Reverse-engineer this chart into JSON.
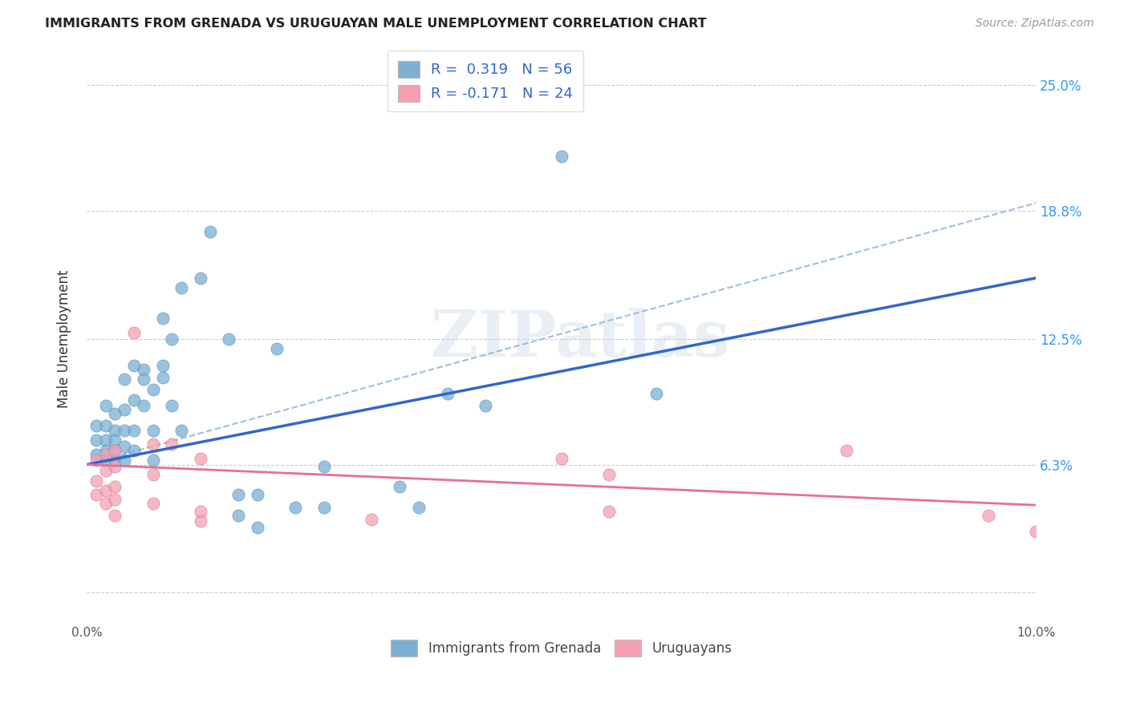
{
  "title": "IMMIGRANTS FROM GRENADA VS URUGUAYAN MALE UNEMPLOYMENT CORRELATION CHART",
  "source": "Source: ZipAtlas.com",
  "ylabel": "Male Unemployment",
  "y_ticks": [
    0.0,
    0.063,
    0.125,
    0.188,
    0.25
  ],
  "y_tick_labels": [
    "",
    "6.3%",
    "12.5%",
    "18.8%",
    "25.0%"
  ],
  "x_min": 0.0,
  "x_max": 0.1,
  "y_min": -0.015,
  "y_max": 0.265,
  "watermark": "ZIPatlas",
  "blue_color": "#7BAFD4",
  "pink_color": "#F4A0B0",
  "blue_line_color": "#3366CC",
  "pink_line_color": "#E87090",
  "dashed_line_color": "#A0BEDE",
  "blue_scatter": [
    [
      0.001,
      0.082
    ],
    [
      0.001,
      0.075
    ],
    [
      0.001,
      0.068
    ],
    [
      0.002,
      0.092
    ],
    [
      0.002,
      0.082
    ],
    [
      0.002,
      0.075
    ],
    [
      0.002,
      0.07
    ],
    [
      0.002,
      0.065
    ],
    [
      0.003,
      0.088
    ],
    [
      0.003,
      0.08
    ],
    [
      0.003,
      0.075
    ],
    [
      0.003,
      0.07
    ],
    [
      0.003,
      0.065
    ],
    [
      0.004,
      0.105
    ],
    [
      0.004,
      0.09
    ],
    [
      0.004,
      0.08
    ],
    [
      0.004,
      0.072
    ],
    [
      0.004,
      0.065
    ],
    [
      0.005,
      0.112
    ],
    [
      0.005,
      0.095
    ],
    [
      0.005,
      0.08
    ],
    [
      0.005,
      0.07
    ],
    [
      0.006,
      0.11
    ],
    [
      0.006,
      0.105
    ],
    [
      0.006,
      0.092
    ],
    [
      0.007,
      0.1
    ],
    [
      0.007,
      0.08
    ],
    [
      0.007,
      0.065
    ],
    [
      0.008,
      0.135
    ],
    [
      0.008,
      0.112
    ],
    [
      0.008,
      0.106
    ],
    [
      0.009,
      0.125
    ],
    [
      0.009,
      0.092
    ],
    [
      0.01,
      0.15
    ],
    [
      0.01,
      0.08
    ],
    [
      0.012,
      0.155
    ],
    [
      0.013,
      0.178
    ],
    [
      0.015,
      0.125
    ],
    [
      0.016,
      0.048
    ],
    [
      0.016,
      0.038
    ],
    [
      0.018,
      0.048
    ],
    [
      0.018,
      0.032
    ],
    [
      0.02,
      0.12
    ],
    [
      0.022,
      0.042
    ],
    [
      0.025,
      0.062
    ],
    [
      0.025,
      0.042
    ],
    [
      0.033,
      0.052
    ],
    [
      0.035,
      0.042
    ],
    [
      0.038,
      0.098
    ],
    [
      0.042,
      0.092
    ],
    [
      0.05,
      0.215
    ],
    [
      0.06,
      0.098
    ]
  ],
  "pink_scatter": [
    [
      0.001,
      0.065
    ],
    [
      0.001,
      0.055
    ],
    [
      0.001,
      0.048
    ],
    [
      0.002,
      0.068
    ],
    [
      0.002,
      0.06
    ],
    [
      0.002,
      0.05
    ],
    [
      0.002,
      0.044
    ],
    [
      0.003,
      0.07
    ],
    [
      0.003,
      0.062
    ],
    [
      0.003,
      0.052
    ],
    [
      0.003,
      0.046
    ],
    [
      0.003,
      0.038
    ],
    [
      0.005,
      0.128
    ],
    [
      0.007,
      0.073
    ],
    [
      0.007,
      0.058
    ],
    [
      0.007,
      0.044
    ],
    [
      0.009,
      0.073
    ],
    [
      0.012,
      0.066
    ],
    [
      0.012,
      0.04
    ],
    [
      0.012,
      0.035
    ],
    [
      0.03,
      0.036
    ],
    [
      0.05,
      0.066
    ],
    [
      0.055,
      0.058
    ],
    [
      0.055,
      0.04
    ],
    [
      0.08,
      0.07
    ],
    [
      0.095,
      0.038
    ],
    [
      0.1,
      0.03
    ]
  ],
  "blue_trend_x": [
    0.0,
    0.1
  ],
  "blue_trend_y": [
    0.063,
    0.155
  ],
  "pink_trend_x": [
    0.0,
    0.1
  ],
  "pink_trend_y": [
    0.063,
    0.043
  ],
  "dashed_trend_x": [
    0.0,
    0.1
  ],
  "dashed_trend_y": [
    0.063,
    0.192
  ]
}
